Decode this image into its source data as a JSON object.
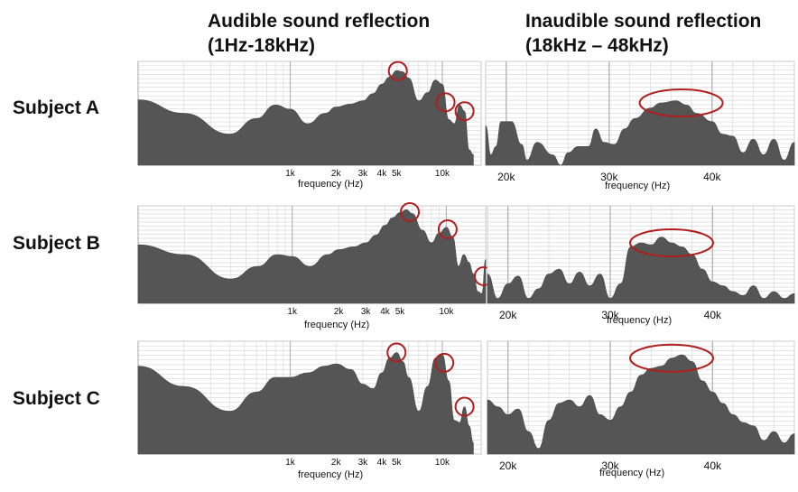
{
  "headers": {
    "audible_line1": "Audible sound reflection",
    "audible_line2": "(1Hz-18kHz)",
    "inaudible_line1": "Inaudible sound reflection",
    "inaudible_line2": "(18kHz – 48kHz)"
  },
  "subjects": [
    "Subject A",
    "Subject B",
    "Subject C"
  ],
  "colors": {
    "fill": "#555555",
    "grid": "#d8d8d8",
    "grid_major": "#b5b5b5",
    "highlight": "#b01e1e"
  },
  "chart_data": [
    {
      "type": "area",
      "subject": "Subject A",
      "panel": "audible",
      "xlabel": "frequency (Hz)",
      "xscale": "log",
      "xlim": [
        100,
        18000
      ],
      "xticks": [
        1000,
        2000,
        3000,
        4000,
        5000,
        10000
      ],
      "xtick_labels": [
        "1k",
        "2k",
        "3k",
        "4k",
        "5k",
        "10k"
      ],
      "ylim": [
        0,
        1
      ],
      "grid": true,
      "x": [
        100,
        200,
        400,
        600,
        800,
        1000,
        1300,
        1700,
        2000,
        2500,
        3000,
        3500,
        4000,
        4500,
        5000,
        5500,
        6000,
        7000,
        8000,
        9000,
        10000,
        11000,
        12000,
        13000,
        14000,
        15000,
        16000
      ],
      "y": [
        0.63,
        0.5,
        0.3,
        0.45,
        0.58,
        0.54,
        0.4,
        0.5,
        0.56,
        0.59,
        0.62,
        0.69,
        0.78,
        0.85,
        0.91,
        0.9,
        0.84,
        0.62,
        0.7,
        0.82,
        0.78,
        0.44,
        0.4,
        0.58,
        0.52,
        0.15,
        0.1
      ],
      "highlights": [
        5100,
        10500,
        14000
      ]
    },
    {
      "type": "area",
      "subject": "Subject A",
      "panel": "inaudible",
      "xlabel": "frequency (Hz)",
      "xlim": [
        18000,
        48000
      ],
      "xticks": [
        20000,
        30000,
        40000
      ],
      "xtick_labels": [
        "20k",
        "30k",
        "40k"
      ],
      "ylim": [
        0,
        1
      ],
      "grid": true,
      "x": [
        18000,
        18500,
        19000,
        19500,
        20500,
        21500,
        22000,
        23000,
        24500,
        25300,
        26000,
        27000,
        28000,
        28700,
        29500,
        30500,
        31500,
        32500,
        34000,
        35000,
        36500,
        37500,
        38500,
        40000,
        41000,
        42000,
        43000,
        44000,
        45000,
        46000,
        47000,
        48000
      ],
      "y": [
        0.38,
        0.1,
        0.18,
        0.42,
        0.42,
        0.2,
        0.05,
        0.22,
        0.1,
        0.0,
        0.12,
        0.18,
        0.18,
        0.35,
        0.22,
        0.2,
        0.35,
        0.45,
        0.55,
        0.6,
        0.62,
        0.58,
        0.5,
        0.42,
        0.3,
        0.28,
        0.12,
        0.25,
        0.1,
        0.25,
        0.05,
        0.22
      ],
      "highlights": [
        37000
      ]
    },
    {
      "type": "area",
      "subject": "Subject B",
      "panel": "audible",
      "xlabel": "frequency (Hz)",
      "xscale": "log",
      "xlim": [
        100,
        18000
      ],
      "xticks": [
        1000,
        2000,
        3000,
        4000,
        5000,
        10000
      ],
      "xtick_labels": [
        "1k",
        "2k",
        "3k",
        "4k",
        "5k",
        "10k"
      ],
      "ylim": [
        0,
        1
      ],
      "grid": true,
      "x": [
        100,
        200,
        400,
        600,
        800,
        1000,
        1300,
        1700,
        2000,
        2500,
        3000,
        3500,
        4000,
        4500,
        5000,
        5500,
        6000,
        7000,
        8000,
        9000,
        10000,
        11000,
        12000,
        13000,
        14000,
        15000,
        16000,
        17000,
        18000
      ],
      "y": [
        0.6,
        0.5,
        0.25,
        0.38,
        0.5,
        0.48,
        0.38,
        0.5,
        0.55,
        0.58,
        0.62,
        0.7,
        0.8,
        0.88,
        0.93,
        0.96,
        0.92,
        0.75,
        0.62,
        0.72,
        0.78,
        0.68,
        0.38,
        0.5,
        0.42,
        0.3,
        0.12,
        0.1,
        0.45
      ],
      "highlights": [
        5800,
        10200,
        17500
      ]
    },
    {
      "type": "area",
      "subject": "Subject B",
      "panel": "inaudible",
      "xlabel": "frequency (Hz)",
      "xlim": [
        18000,
        48000
      ],
      "xticks": [
        20000,
        30000,
        40000
      ],
      "xtick_labels": [
        "20k",
        "30k",
        "40k"
      ],
      "ylim": [
        0,
        1
      ],
      "grid": true,
      "x": [
        18000,
        19000,
        20000,
        21000,
        22000,
        23000,
        24000,
        25000,
        26000,
        27000,
        28000,
        29000,
        30000,
        31000,
        32000,
        33000,
        34000,
        35000,
        36000,
        37000,
        38000,
        39000,
        40000,
        41000,
        42000,
        43000,
        44000,
        45000,
        46000,
        47000,
        48000
      ],
      "y": [
        0.3,
        0.05,
        0.2,
        0.28,
        0.05,
        0.15,
        0.3,
        0.35,
        0.2,
        0.32,
        0.18,
        0.3,
        0.05,
        0.2,
        0.58,
        0.62,
        0.6,
        0.68,
        0.62,
        0.58,
        0.5,
        0.35,
        0.22,
        0.18,
        0.12,
        0.08,
        0.18,
        0.05,
        0.12,
        0.05,
        0.1
      ],
      "highlights": [
        36000
      ]
    },
    {
      "type": "area",
      "subject": "Subject C",
      "panel": "audible",
      "xlabel": "frequency (Hz)",
      "xscale": "log",
      "xlim": [
        100,
        18000
      ],
      "xticks": [
        1000,
        2000,
        3000,
        4000,
        5000,
        10000
      ],
      "xtick_labels": [
        "1k",
        "2k",
        "3k",
        "4k",
        "5k",
        "10k"
      ],
      "ylim": [
        0,
        1
      ],
      "grid": true,
      "x": [
        100,
        200,
        400,
        600,
        800,
        1000,
        1300,
        1700,
        2000,
        2500,
        3000,
        3500,
        4000,
        4500,
        5000,
        5500,
        6000,
        7000,
        8000,
        9000,
        10000,
        11000,
        12000,
        13000,
        14000,
        15000,
        16000
      ],
      "y": [
        0.78,
        0.6,
        0.38,
        0.55,
        0.68,
        0.68,
        0.72,
        0.78,
        0.8,
        0.75,
        0.62,
        0.58,
        0.72,
        0.85,
        0.9,
        0.82,
        0.68,
        0.38,
        0.6,
        0.85,
        0.88,
        0.65,
        0.3,
        0.28,
        0.42,
        0.25,
        0.1
      ],
      "highlights": [
        5000,
        10300,
        14000
      ]
    },
    {
      "type": "area",
      "subject": "Subject C",
      "panel": "inaudible",
      "xlabel": "frequency (Hz)",
      "xlim": [
        18000,
        48000
      ],
      "xticks": [
        20000,
        30000,
        40000
      ],
      "xtick_labels": [
        "20k",
        "30k",
        "40k"
      ],
      "ylim": [
        0,
        1
      ],
      "grid": true,
      "x": [
        18000,
        19000,
        20000,
        21000,
        22000,
        23000,
        24000,
        25000,
        26000,
        27000,
        28000,
        29000,
        30000,
        31000,
        32000,
        33000,
        34000,
        35000,
        36000,
        37000,
        38000,
        39000,
        40000,
        41000,
        42000,
        43000,
        44000,
        45000,
        46000,
        47000,
        48000
      ],
      "y": [
        0.48,
        0.42,
        0.35,
        0.4,
        0.2,
        0.05,
        0.3,
        0.45,
        0.48,
        0.42,
        0.52,
        0.35,
        0.3,
        0.42,
        0.55,
        0.7,
        0.76,
        0.78,
        0.85,
        0.88,
        0.82,
        0.65,
        0.55,
        0.45,
        0.35,
        0.28,
        0.25,
        0.12,
        0.2,
        0.1,
        0.18
      ],
      "highlights": [
        36000
      ]
    }
  ]
}
